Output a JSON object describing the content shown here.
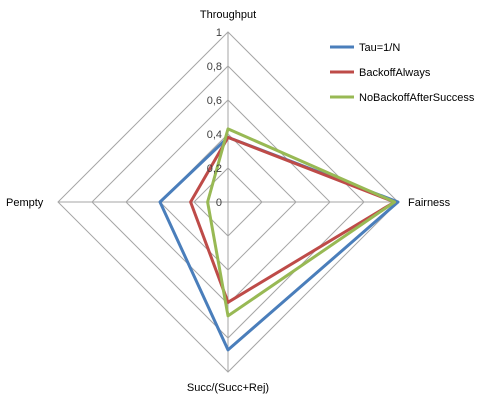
{
  "chart_data": {
    "type": "radar",
    "axes": [
      "Throughput",
      "Fairness",
      "Succ/(Succ+Rej)",
      "Pempty"
    ],
    "ticks": [
      "0",
      "0,2",
      "0,4",
      "0,6",
      "0,8",
      "1"
    ],
    "tick_values": [
      0,
      0.2,
      0.4,
      0.6,
      0.8,
      1
    ],
    "range": [
      0,
      1
    ],
    "grid": true,
    "legend_position": "top-right",
    "series": [
      {
        "name": "Tau=1/N",
        "color": "#4a7ebb",
        "values": [
          0.38,
          1.0,
          0.87,
          0.4
        ]
      },
      {
        "name": "BackoffAlways",
        "color": "#be4b48",
        "values": [
          0.38,
          0.98,
          0.59,
          0.22
        ]
      },
      {
        "name": "NoBackoffAfterSuccess",
        "color": "#98b954",
        "values": [
          0.43,
          0.98,
          0.67,
          0.12
        ]
      }
    ]
  }
}
